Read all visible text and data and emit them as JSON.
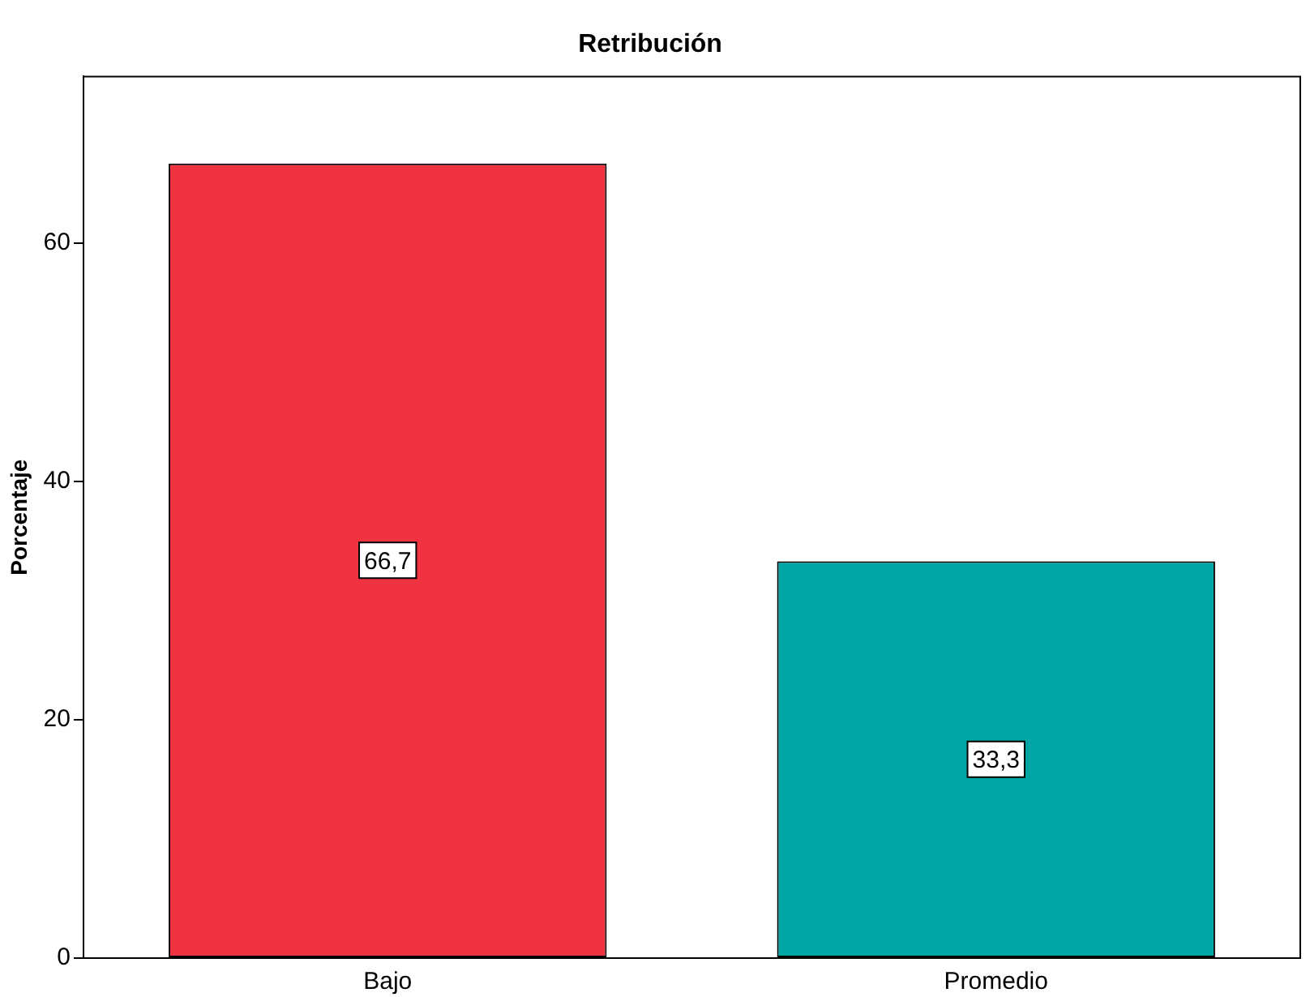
{
  "chart_data": {
    "type": "bar",
    "title": "Retribución",
    "ylabel": "Porcentaje",
    "categories": [
      "Bajo",
      "Promedio"
    ],
    "values": [
      66.7,
      33.3
    ],
    "colors": [
      "#ef3340",
      "#00a6a3"
    ],
    "value_labels": [
      "66,7",
      "33,3"
    ],
    "ylim": [
      0,
      74
    ],
    "yticks": [
      0,
      20,
      40,
      60
    ],
    "grid": false,
    "legend": false
  }
}
